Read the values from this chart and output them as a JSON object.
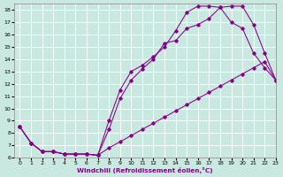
{
  "xlabel": "Windchill (Refroidissement éolien,°C)",
  "xlim": [
    -0.5,
    23
  ],
  "ylim": [
    6,
    18.5
  ],
  "bg_color": "#c8e8e0",
  "line_color": "#880088",
  "grid_color": "#aaddcc",
  "xticks": [
    0,
    1,
    2,
    3,
    4,
    5,
    6,
    7,
    8,
    9,
    10,
    11,
    12,
    13,
    14,
    15,
    16,
    17,
    18,
    19,
    20,
    21,
    22,
    23
  ],
  "yticks": [
    6,
    7,
    8,
    9,
    10,
    11,
    12,
    13,
    14,
    15,
    16,
    17,
    18
  ],
  "curve1_x": [
    0,
    1,
    2,
    3,
    4,
    5,
    6,
    7,
    8,
    9,
    10,
    11,
    12,
    13,
    14,
    15,
    16,
    17,
    18,
    19,
    20,
    21,
    22,
    23
  ],
  "curve1_y": [
    8.5,
    7.2,
    6.5,
    6.5,
    6.3,
    6.3,
    6.3,
    6.2,
    8.3,
    10.8,
    12.3,
    13.2,
    14.0,
    15.3,
    15.5,
    16.5,
    16.8,
    17.3,
    18.2,
    18.3,
    18.3,
    16.8,
    14.5,
    12.3
  ],
  "curve2_x": [
    0,
    1,
    2,
    3,
    4,
    5,
    6,
    7,
    8,
    9,
    10,
    11,
    12,
    13,
    14,
    15,
    16,
    17,
    18,
    19,
    20,
    21,
    22,
    23
  ],
  "curve2_y": [
    8.5,
    7.2,
    6.5,
    6.5,
    6.3,
    6.3,
    6.3,
    6.2,
    9.0,
    11.5,
    13.0,
    13.5,
    14.2,
    15.0,
    16.3,
    17.8,
    18.3,
    18.3,
    18.2,
    17.0,
    16.5,
    14.5,
    13.3,
    12.3
  ],
  "curve3_x": [
    0,
    1,
    2,
    3,
    4,
    5,
    6,
    7,
    8,
    9,
    10,
    11,
    12,
    13,
    14,
    15,
    16,
    17,
    18,
    19,
    20,
    21,
    22,
    23
  ],
  "curve3_y": [
    8.5,
    7.2,
    6.5,
    6.5,
    6.3,
    6.3,
    6.3,
    6.2,
    6.8,
    7.3,
    7.8,
    8.3,
    8.8,
    9.3,
    9.8,
    10.3,
    10.8,
    11.3,
    11.8,
    12.3,
    12.8,
    13.3,
    13.8,
    12.3
  ]
}
